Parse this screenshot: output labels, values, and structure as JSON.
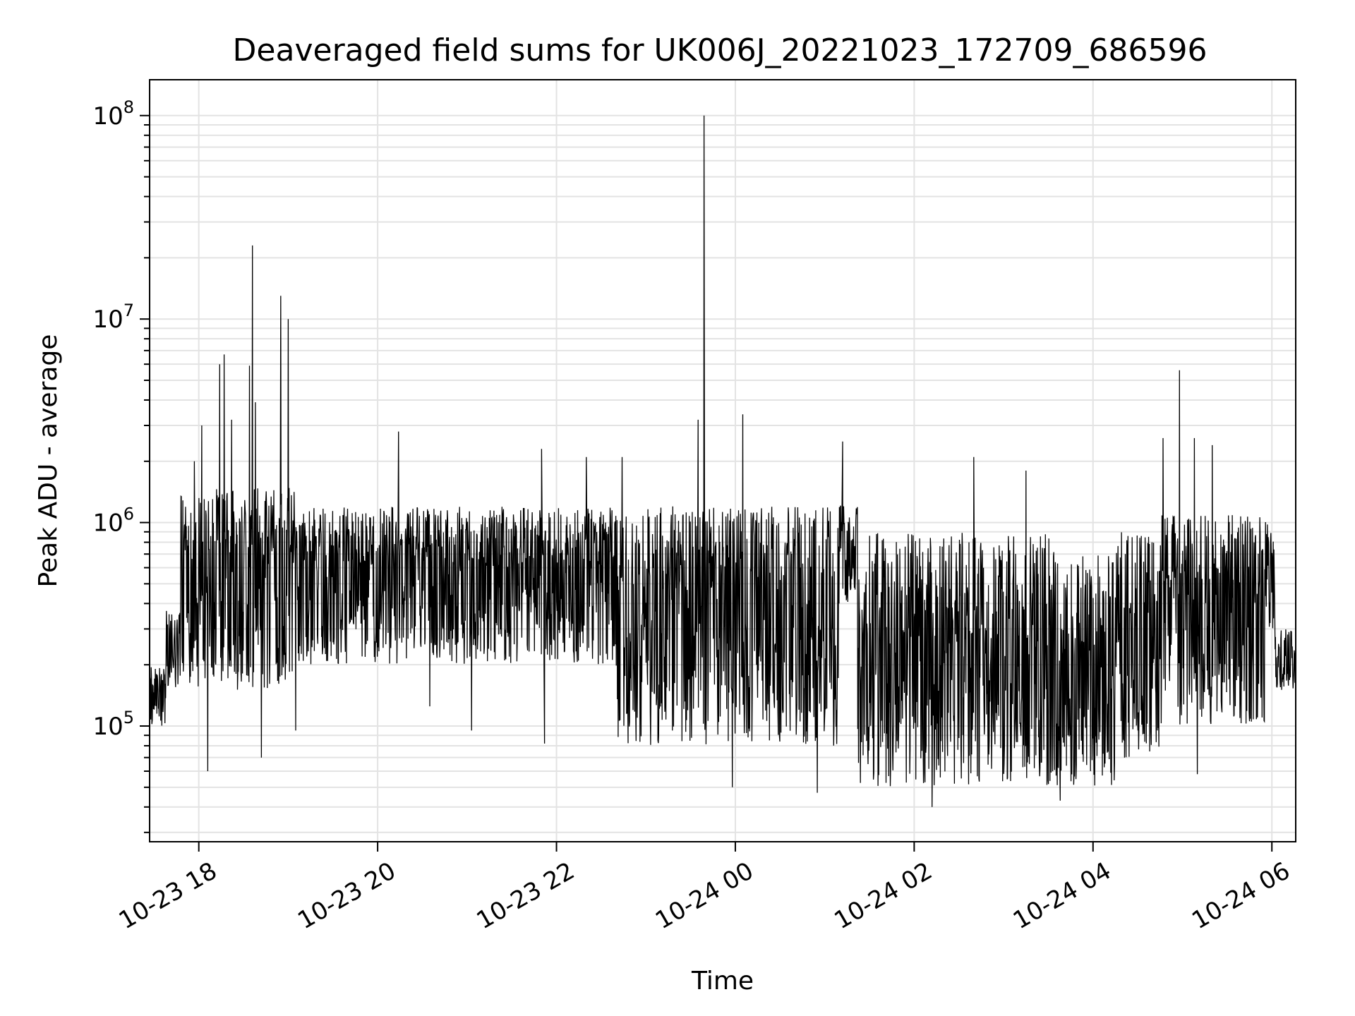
{
  "chart_data": {
    "type": "line",
    "title": "Deaveraged field sums for UK006J_20221023_172709_686596",
    "xlabel": "Time",
    "ylabel": "Peak ADU - average",
    "yscale": "log",
    "ylim": [
      27000,
      150000000
    ],
    "xlim": [
      "2022-10-23 17:27",
      "2022-10-24 06:16"
    ],
    "grid": true,
    "line_color": "#000000",
    "x_ticks": [
      {
        "value": "2022-10-23 18:00",
        "label": "10-23 18"
      },
      {
        "value": "2022-10-23 20:00",
        "label": "10-23 20"
      },
      {
        "value": "2022-10-23 22:00",
        "label": "10-23 22"
      },
      {
        "value": "2022-10-24 00:00",
        "label": "10-24 00"
      },
      {
        "value": "2022-10-24 02:00",
        "label": "10-24 02"
      },
      {
        "value": "2022-10-24 04:00",
        "label": "10-24 04"
      },
      {
        "value": "2022-10-24 06:00",
        "label": "10-24 06"
      }
    ],
    "y_ticks": [
      {
        "value": 100000,
        "base": "10",
        "exp": "5"
      },
      {
        "value": 1000000,
        "base": "10",
        "exp": "6"
      },
      {
        "value": 10000000,
        "base": "10",
        "exp": "7"
      },
      {
        "value": 100000000,
        "base": "10",
        "exp": "8"
      }
    ],
    "segments": [
      {
        "start": "2022-10-23 17:27",
        "end": "2022-10-23 17:38",
        "low": 100000,
        "high": 200000,
        "mid": 150000
      },
      {
        "start": "2022-10-23 17:38",
        "end": "2022-10-23 17:48",
        "low": 150000,
        "high": 400000,
        "mid": 250000
      },
      {
        "start": "2022-10-23 17:48",
        "end": "2022-10-23 19:05",
        "low": 150000,
        "high": 1500000,
        "mid": 650000
      },
      {
        "start": "2022-10-23 19:05",
        "end": "2022-10-23 22:40",
        "low": 200000,
        "high": 1200000,
        "mid": 600000
      },
      {
        "start": "2022-10-23 22:40",
        "end": "2022-10-24 01:10",
        "low": 80000,
        "high": 1200000,
        "mid": 450000
      },
      {
        "start": "2022-10-24 01:10",
        "end": "2022-10-24 01:22",
        "low": 400000,
        "high": 1300000,
        "mid": 800000
      },
      {
        "start": "2022-10-24 01:22",
        "end": "2022-10-24 03:35",
        "low": 50000,
        "high": 900000,
        "mid": 220000
      },
      {
        "start": "2022-10-24 03:35",
        "end": "2022-10-24 04:15",
        "low": 50000,
        "high": 700000,
        "mid": 180000
      },
      {
        "start": "2022-10-24 04:15",
        "end": "2022-10-24 04:45",
        "low": 70000,
        "high": 900000,
        "mid": 250000
      },
      {
        "start": "2022-10-24 04:45",
        "end": "2022-10-24 05:55",
        "low": 100000,
        "high": 1100000,
        "mid": 400000
      },
      {
        "start": "2022-10-24 05:55",
        "end": "2022-10-24 06:02",
        "low": 300000,
        "high": 1100000,
        "mid": 700000
      },
      {
        "start": "2022-10-24 06:02",
        "end": "2022-10-24 06:16",
        "low": 150000,
        "high": 300000,
        "mid": 200000
      }
    ],
    "spikes": [
      {
        "x": "2022-10-23 17:57",
        "y": 2000000
      },
      {
        "x": "2022-10-23 18:02",
        "y": 3000000
      },
      {
        "x": "2022-10-23 18:06",
        "y": 60000
      },
      {
        "x": "2022-10-23 18:14",
        "y": 6000000
      },
      {
        "x": "2022-10-23 18:17",
        "y": 6700000
      },
      {
        "x": "2022-10-23 18:22",
        "y": 3200000
      },
      {
        "x": "2022-10-23 18:34",
        "y": 5900000
      },
      {
        "x": "2022-10-23 18:36",
        "y": 23000000
      },
      {
        "x": "2022-10-23 18:38",
        "y": 3900000
      },
      {
        "x": "2022-10-23 18:42",
        "y": 70000
      },
      {
        "x": "2022-10-23 18:55",
        "y": 13000000
      },
      {
        "x": "2022-10-23 19:00",
        "y": 10000000
      },
      {
        "x": "2022-10-23 19:05",
        "y": 95000
      },
      {
        "x": "2022-10-23 20:14",
        "y": 2800000
      },
      {
        "x": "2022-10-23 20:35",
        "y": 125000
      },
      {
        "x": "2022-10-23 21:03",
        "y": 95000
      },
      {
        "x": "2022-10-23 21:50",
        "y": 2300000
      },
      {
        "x": "2022-10-23 21:52",
        "y": 82000
      },
      {
        "x": "2022-10-23 22:20",
        "y": 2100000
      },
      {
        "x": "2022-10-23 22:44",
        "y": 2100000
      },
      {
        "x": "2022-10-23 23:35",
        "y": 3200000
      },
      {
        "x": "2022-10-23 23:39",
        "y": 100000000
      },
      {
        "x": "2022-10-23 23:58",
        "y": 50000
      },
      {
        "x": "2022-10-24 00:05",
        "y": 3400000
      },
      {
        "x": "2022-10-24 00:55",
        "y": 47000
      },
      {
        "x": "2022-10-24 01:12",
        "y": 2500000
      },
      {
        "x": "2022-10-24 02:12",
        "y": 40000
      },
      {
        "x": "2022-10-24 02:40",
        "y": 2100000
      },
      {
        "x": "2022-10-24 03:15",
        "y": 1800000
      },
      {
        "x": "2022-10-24 03:38",
        "y": 43000
      },
      {
        "x": "2022-10-24 04:47",
        "y": 2600000
      },
      {
        "x": "2022-10-24 04:58",
        "y": 5600000
      },
      {
        "x": "2022-10-24 05:08",
        "y": 2600000
      },
      {
        "x": "2022-10-24 05:20",
        "y": 2400000
      },
      {
        "x": "2022-10-24 05:10",
        "y": 58000
      }
    ]
  }
}
